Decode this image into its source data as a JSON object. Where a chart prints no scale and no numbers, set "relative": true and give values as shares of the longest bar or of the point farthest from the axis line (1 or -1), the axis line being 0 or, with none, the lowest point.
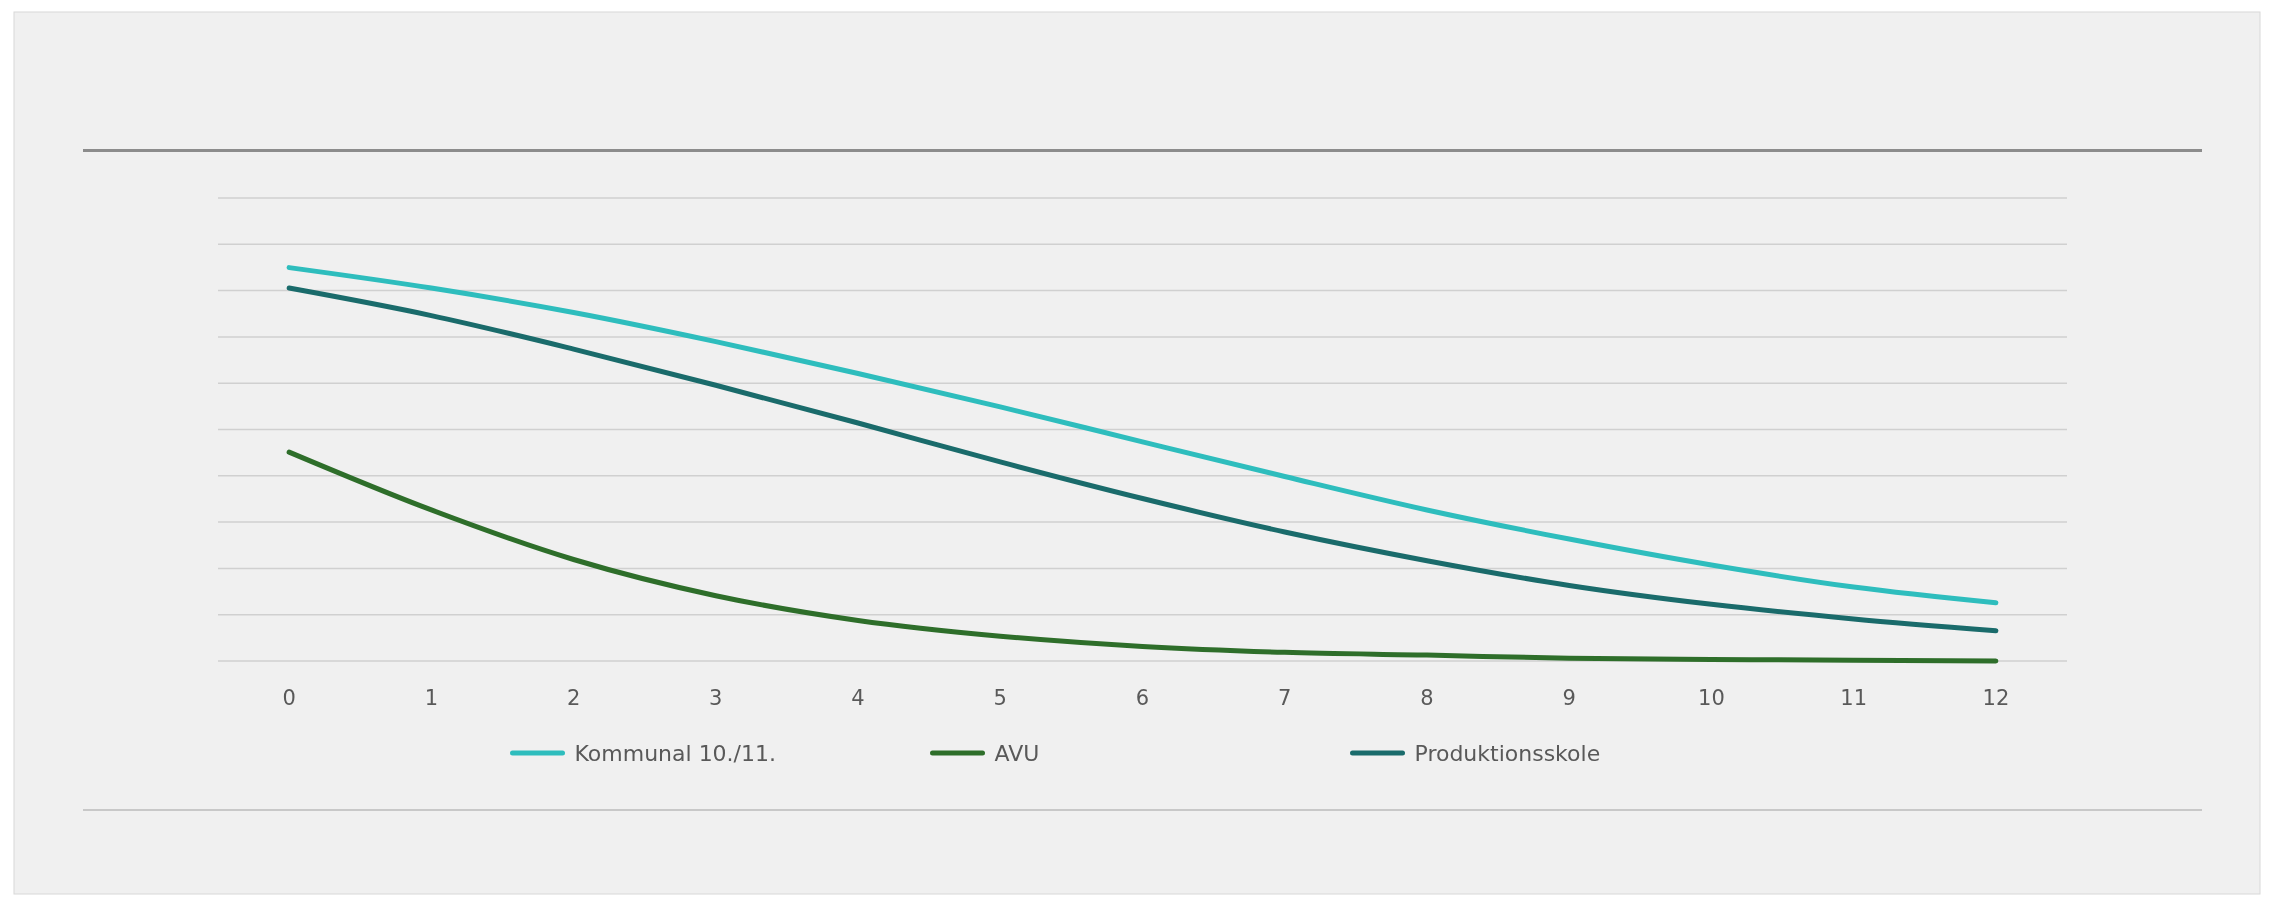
{
  "chart_data": {
    "type": "line",
    "relative": true,
    "grid": "y",
    "legend": "bottom",
    "categories": [
      "0",
      "1",
      "2",
      "3",
      "4",
      "5",
      "6",
      "7",
      "8",
      "9",
      "10",
      "11",
      "12"
    ],
    "series": [
      {
        "name": "Kommunal 10./11.",
        "color": "#2ebdbd",
        "values": [
          1,
          0.948,
          0.886,
          0.812,
          0.731,
          0.646,
          0.557,
          0.469,
          0.384,
          0.31,
          0.244,
          0.188,
          0.148
        ]
      },
      {
        "name": "AVU",
        "color": "#2e6e2a",
        "values": [
          0.531,
          0.384,
          0.258,
          0.166,
          0.103,
          0.063,
          0.037,
          0.022,
          0.015,
          0.007,
          0.004,
          0.002,
          0
        ]
      },
      {
        "name": "Produktionsskole",
        "color": "#1a6b6b",
        "values": [
          0.948,
          0.878,
          0.793,
          0.701,
          0.605,
          0.506,
          0.413,
          0.328,
          0.255,
          0.192,
          0.144,
          0.107,
          0.077
        ]
      }
    ]
  }
}
